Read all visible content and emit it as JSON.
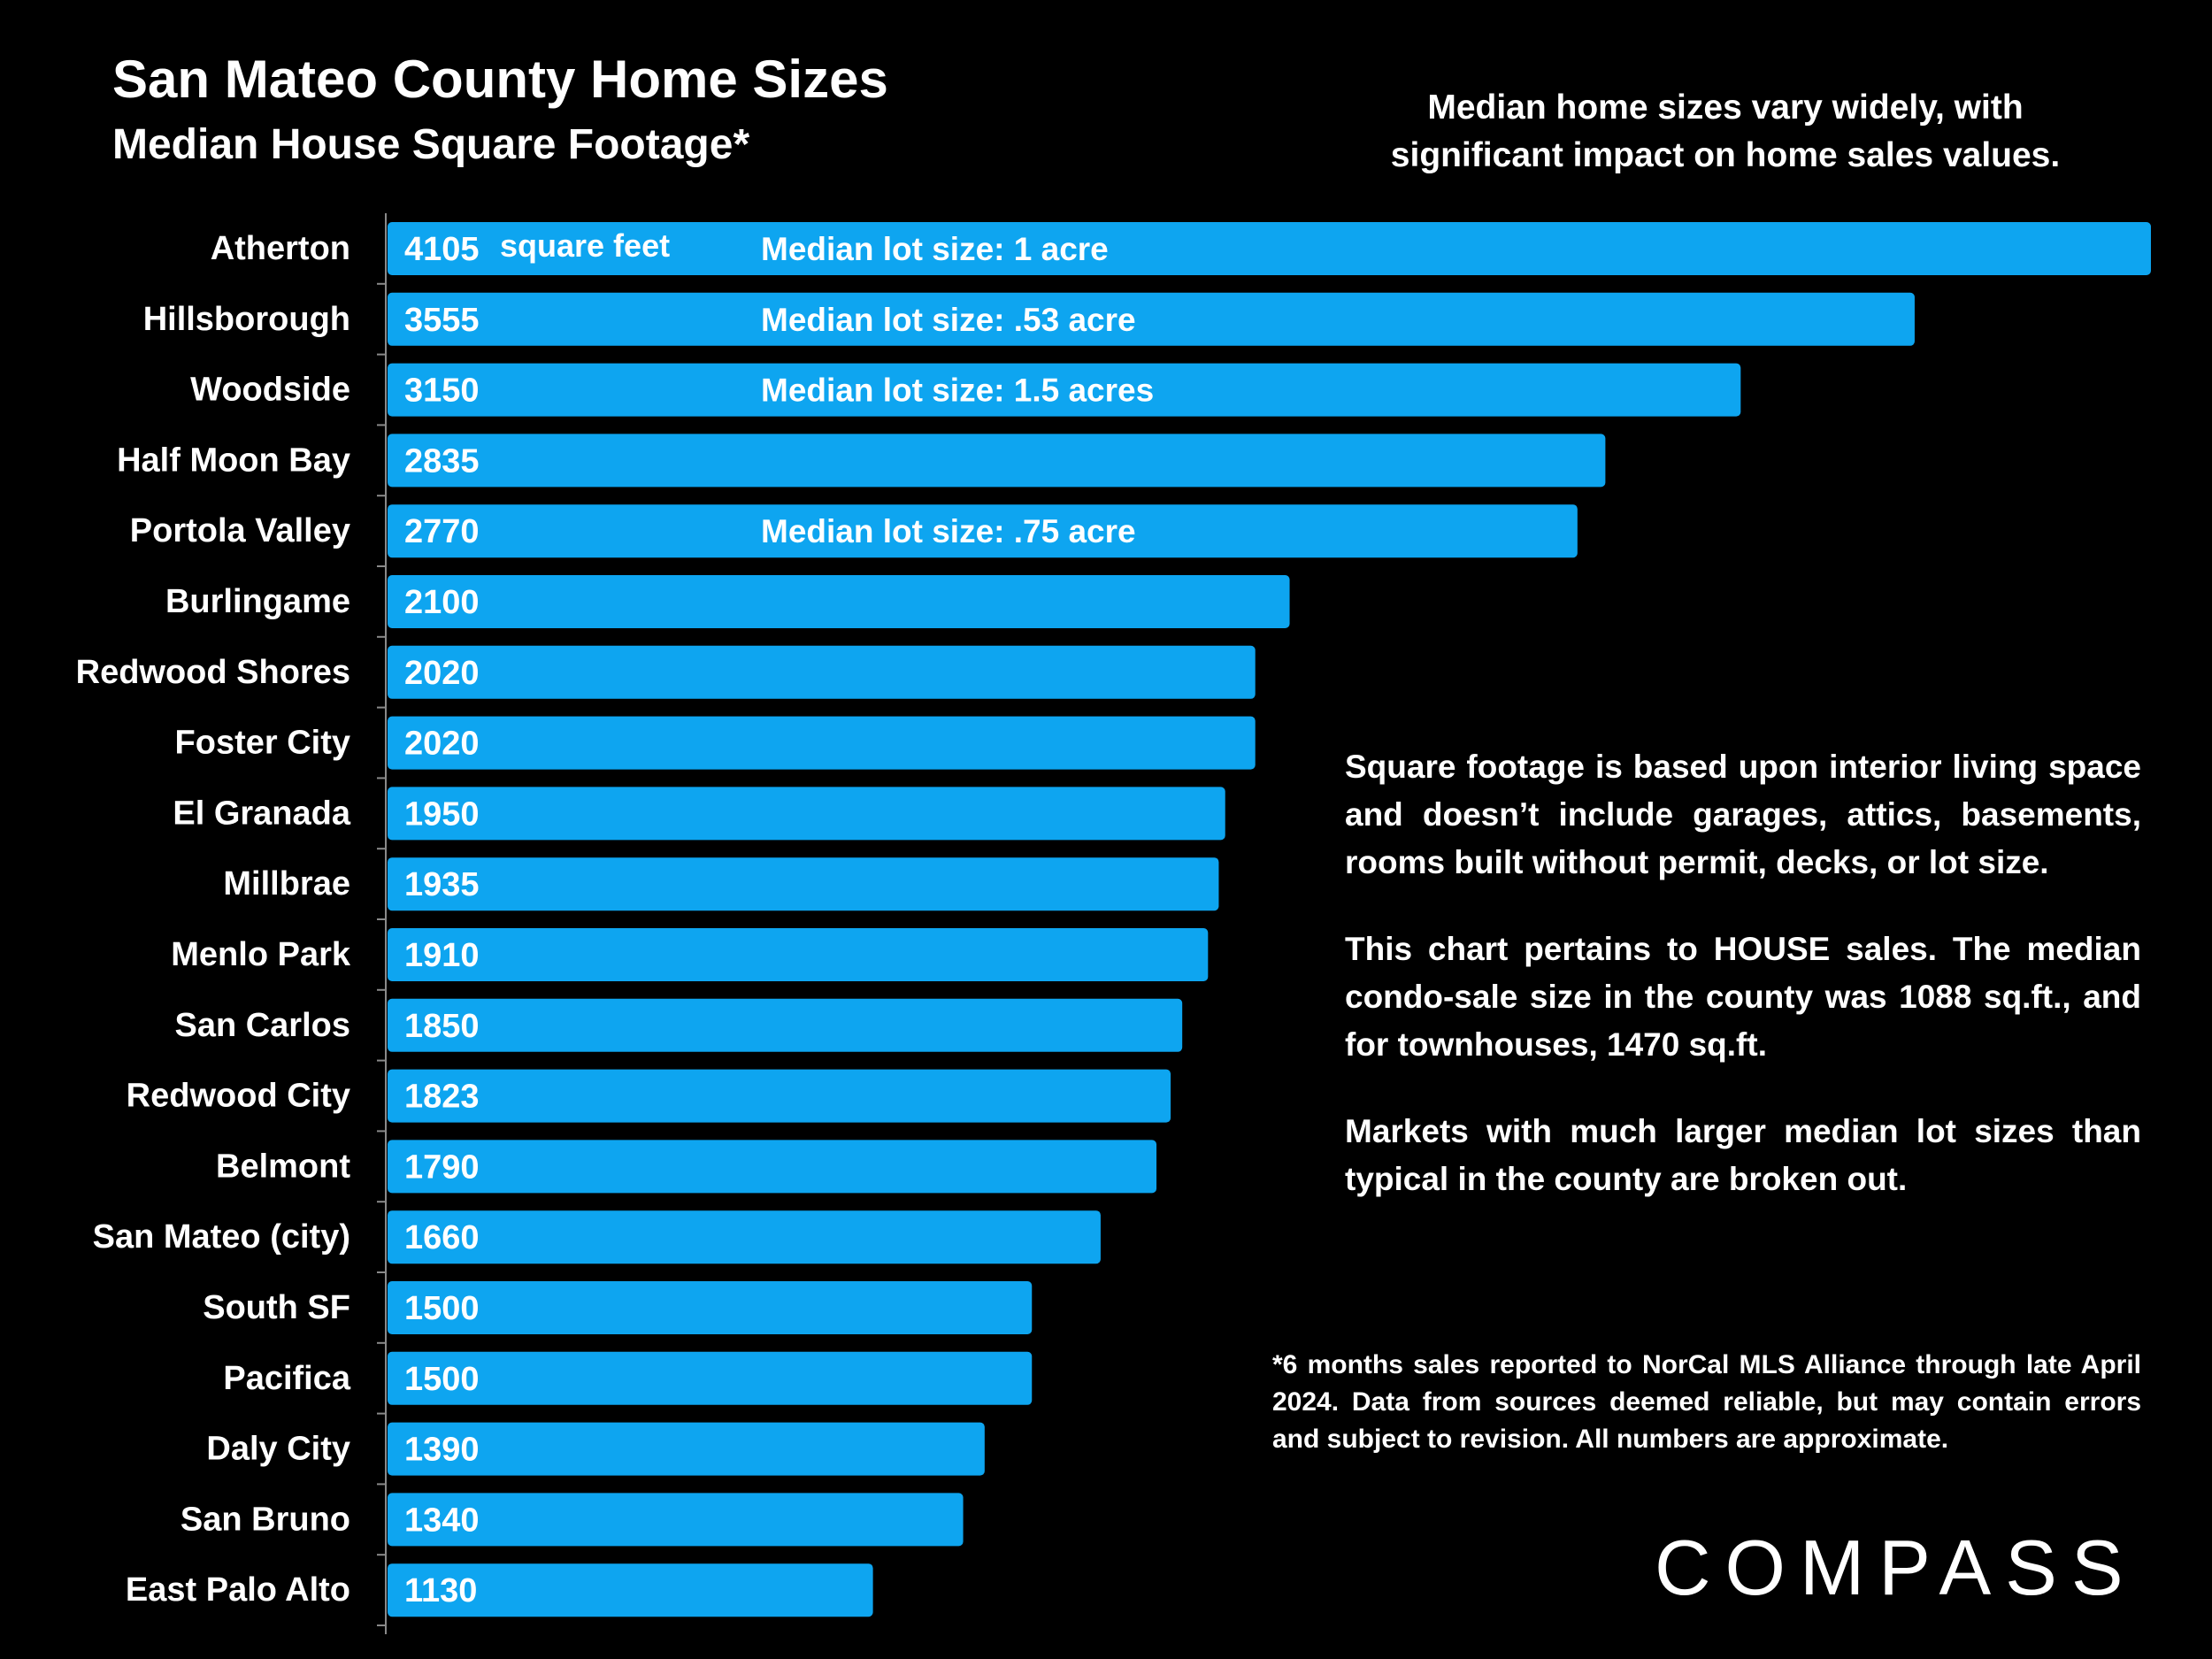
{
  "header": {
    "title": "San Mateo County Home Sizes",
    "subtitle": "Median House Square Footage*",
    "tagline": "Median home sizes vary widely, with significant impact on home sales values."
  },
  "chart_data": {
    "type": "bar",
    "orientation": "horizontal",
    "bar_color": "#0ea5f0",
    "categories": [
      "Atherton",
      "Hillsborough",
      "Woodside",
      "Half Moon Bay",
      "Portola Valley",
      "Burlingame",
      "Redwood Shores",
      "Foster City",
      "El Granada",
      "Millbrae",
      "Menlo Park",
      "San Carlos",
      "Redwood City",
      "Belmont",
      "San Mateo (city)",
      "South SF",
      "Pacifica",
      "Daly City",
      "San Bruno",
      "East Palo Alto"
    ],
    "values": [
      4105,
      3555,
      3150,
      2835,
      2770,
      2100,
      2020,
      2020,
      1950,
      1935,
      1910,
      1850,
      1823,
      1790,
      1660,
      1500,
      1500,
      1390,
      1340,
      1130
    ],
    "unit_label": "square feet",
    "annotations": [
      {
        "category": "Atherton",
        "text": "Median lot size:  1 acre"
      },
      {
        "category": "Hillsborough",
        "text": "Median lot size:  .53 acre"
      },
      {
        "category": "Woodside",
        "text": "Median lot size:  1.5 acres"
      },
      {
        "category": "Portola Valley",
        "text": "Median lot size:  .75 acre"
      }
    ]
  },
  "notes": [
    "Square footage is based upon interior living space and doesn’t include garages, attics, basements, rooms built without permit, decks, or lot size.",
    "This chart pertains to HOUSE sales. The median condo-sale size in the county was 1088 sq.ft., and for townhouses, 1470 sq.ft.",
    "Markets with much larger median lot sizes than typical in the county are broken out."
  ],
  "footnote": "*6 months sales reported to NorCal MLS Alliance through late April 2024. Data from sources deemed reliable, but may contain errors and subject to revision. All numbers are approximate.",
  "logo": "COMPASS"
}
